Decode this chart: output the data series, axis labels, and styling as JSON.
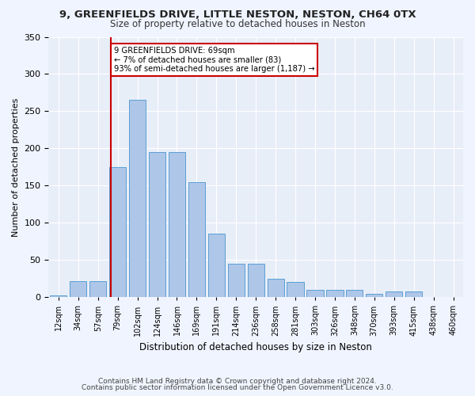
{
  "title1": "9, GREENFIELDS DRIVE, LITTLE NESTON, NESTON, CH64 0TX",
  "title2": "Size of property relative to detached houses in Neston",
  "xlabel": "Distribution of detached houses by size in Neston",
  "ylabel": "Number of detached properties",
  "bar_labels": [
    "12sqm",
    "34sqm",
    "57sqm",
    "79sqm",
    "102sqm",
    "124sqm",
    "146sqm",
    "169sqm",
    "191sqm",
    "214sqm",
    "236sqm",
    "258sqm",
    "281sqm",
    "303sqm",
    "326sqm",
    "348sqm",
    "370sqm",
    "393sqm",
    "415sqm",
    "438sqm",
    "460sqm"
  ],
  "bar_values": [
    2,
    22,
    22,
    175,
    265,
    195,
    195,
    155,
    85,
    45,
    45,
    25,
    20,
    10,
    10,
    10,
    5,
    8,
    8,
    0,
    0
  ],
  "bar_color": "#aec6e8",
  "bar_edge_color": "#5a9fd4",
  "annotation_text": "9 GREENFIELDS DRIVE: 69sqm\n← 7% of detached houses are smaller (83)\n93% of semi-detached houses are larger (1,187) →",
  "annotation_box_color": "#ffffff",
  "annotation_box_edge_color": "#cc0000",
  "redline_bar_index": 3,
  "redline_color": "#cc0000",
  "background_color": "#f0f4ff",
  "plot_bg_color": "#e8eef8",
  "footer1": "Contains HM Land Registry data © Crown copyright and database right 2024.",
  "footer2": "Contains public sector information licensed under the Open Government Licence v3.0.",
  "ylim": [
    0,
    350
  ],
  "title1_fontsize": 9.5,
  "title2_fontsize": 8.5,
  "xlabel_fontsize": 8.5,
  "ylabel_fontsize": 8,
  "tick_fontsize": 7,
  "footer_fontsize": 6.5
}
